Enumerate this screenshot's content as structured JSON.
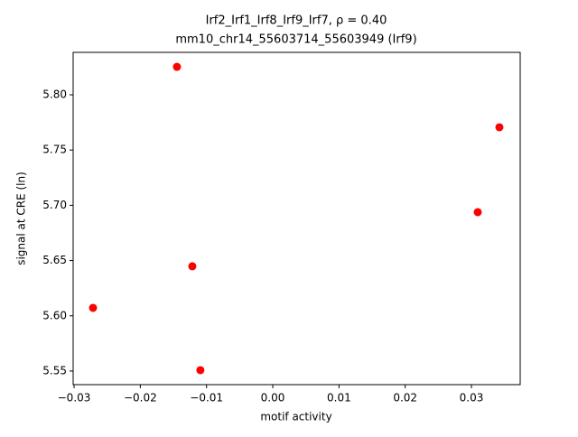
{
  "chart_data": {
    "type": "scatter",
    "title": "Irf2_Irf1_Irf8_Irf9_Irf7, ρ = 0.40",
    "subtitle": "mm10_chr14_55603714_55603949 (Irf9)",
    "x_label": "motif activity",
    "y_label": "signal at CRE (ln)",
    "color": "#ff0000",
    "x": [
      -0.01447,
      0.03422,
      0.03095,
      -0.01215,
      -0.02714,
      -0.01093
    ],
    "values": [
      5.8253,
      5.7706,
      5.6938,
      5.6448,
      5.6072,
      5.5508
    ],
    "xlim": [
      -0.03014,
      0.03736
    ],
    "ylim": [
      5.5377,
      5.8384
    ],
    "xticks": [
      {
        "value": -0.03,
        "label": "−0.03"
      },
      {
        "value": -0.02,
        "label": "−0.02"
      },
      {
        "value": -0.01,
        "label": "−0.01"
      },
      {
        "value": 0,
        "label": "0.00"
      },
      {
        "value": 0.01,
        "label": "0.01"
      },
      {
        "value": 0.02,
        "label": "0.02"
      },
      {
        "value": 0.03,
        "label": "0.03"
      }
    ],
    "yticks": [
      {
        "value": 5.55,
        "label": "5.55"
      },
      {
        "value": 5.6,
        "label": "5.60"
      },
      {
        "value": 5.65,
        "label": "5.65"
      },
      {
        "value": 5.7,
        "label": "5.70"
      },
      {
        "value": 5.75,
        "label": "5.75"
      },
      {
        "value": 5.8,
        "label": "5.80"
      }
    ],
    "grid": false
  }
}
